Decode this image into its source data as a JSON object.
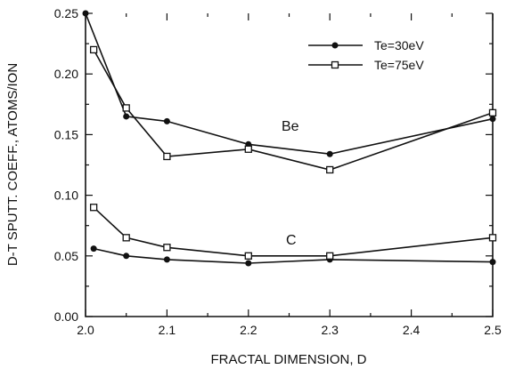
{
  "chart_data": {
    "type": "line",
    "xlabel": "FRACTAL DIMENSION, D",
    "ylabel": "D-T SPUTT. COEFF., ATOMS/ION",
    "xlim": [
      2.0,
      2.5
    ],
    "ylim": [
      0.0,
      0.25
    ],
    "x_ticks": [
      "2.0",
      "2.1",
      "2.2",
      "2.3",
      "2.4",
      "2.5"
    ],
    "y_ticks": [
      "0.00",
      "0.05",
      "0.10",
      "0.15",
      "0.20",
      "0.25"
    ],
    "grid": false,
    "legend_position": "top-right",
    "legend": [
      {
        "label": "Te=30eV",
        "marker": "filled-circle"
      },
      {
        "label": "Te=75eV",
        "marker": "open-square"
      }
    ],
    "annotations": [
      "Be",
      "C"
    ],
    "series": [
      {
        "group": "Be",
        "legend": "Te=30eV",
        "marker": "filled-circle",
        "x": [
          2.0,
          2.05,
          2.1,
          2.2,
          2.3,
          2.5
        ],
        "y": [
          0.25,
          0.165,
          0.161,
          0.142,
          0.134,
          0.163
        ]
      },
      {
        "group": "Be",
        "legend": "Te=75eV",
        "marker": "open-square",
        "x": [
          2.01,
          2.05,
          2.1,
          2.2,
          2.3,
          2.5
        ],
        "y": [
          0.22,
          0.172,
          0.132,
          0.138,
          0.121,
          0.168
        ]
      },
      {
        "group": "C",
        "legend": "Te=30eV",
        "marker": "filled-circle",
        "x": [
          2.01,
          2.05,
          2.1,
          2.2,
          2.3,
          2.5
        ],
        "y": [
          0.056,
          0.05,
          0.047,
          0.044,
          0.047,
          0.045
        ]
      },
      {
        "group": "C",
        "legend": "Te=75eV",
        "marker": "open-square",
        "x": [
          2.01,
          2.05,
          2.1,
          2.2,
          2.3,
          2.5
        ],
        "y": [
          0.09,
          0.065,
          0.057,
          0.05,
          0.05,
          0.065
        ]
      }
    ]
  }
}
